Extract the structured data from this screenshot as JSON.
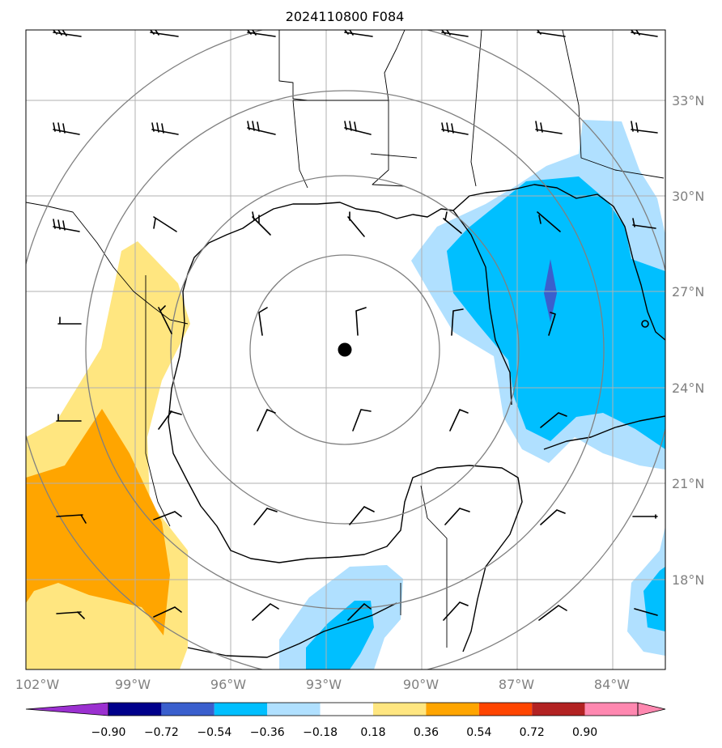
{
  "title": "2024110800 F084",
  "map": {
    "lon_range": [
      -102,
      -82
    ],
    "lat_range": [
      15.5,
      35.5
    ],
    "lon_ticks": [
      "102°W",
      "99°W",
      "96°W",
      "93°W",
      "90°W",
      "87°W",
      "84°W"
    ],
    "lat_ticks": [
      "33°N",
      "30°N",
      "27°N",
      "24°N",
      "21°N",
      "18°N"
    ],
    "grid": true,
    "storm_center": {
      "lon": -92.5,
      "lat": 25.2
    },
    "range_rings_deg": [
      3,
      6,
      9,
      12
    ]
  },
  "colorbar": {
    "tick_labels": [
      "−0.90",
      "−0.72",
      "−0.54",
      "−0.36",
      "−0.18",
      "0.18",
      "0.36",
      "0.54",
      "0.72",
      "0.90"
    ],
    "colors": [
      "#9b30d0",
      "#00008b",
      "#3a5fcd",
      "#00bfff",
      "#b0e0ff",
      "#ffffff",
      "#ffe680",
      "#ffa500",
      "#ff4500",
      "#b22222",
      "#ff88b0"
    ]
  },
  "colors": {
    "pos_light": "#ffe680",
    "pos_mid": "#ffa500",
    "neg_light": "#b0e0ff",
    "neg_mid": "#00bfff",
    "neg_strong": "#3a5fcd",
    "grid": "#b0b0b0",
    "ring": "#808080",
    "coast": "#000000"
  }
}
